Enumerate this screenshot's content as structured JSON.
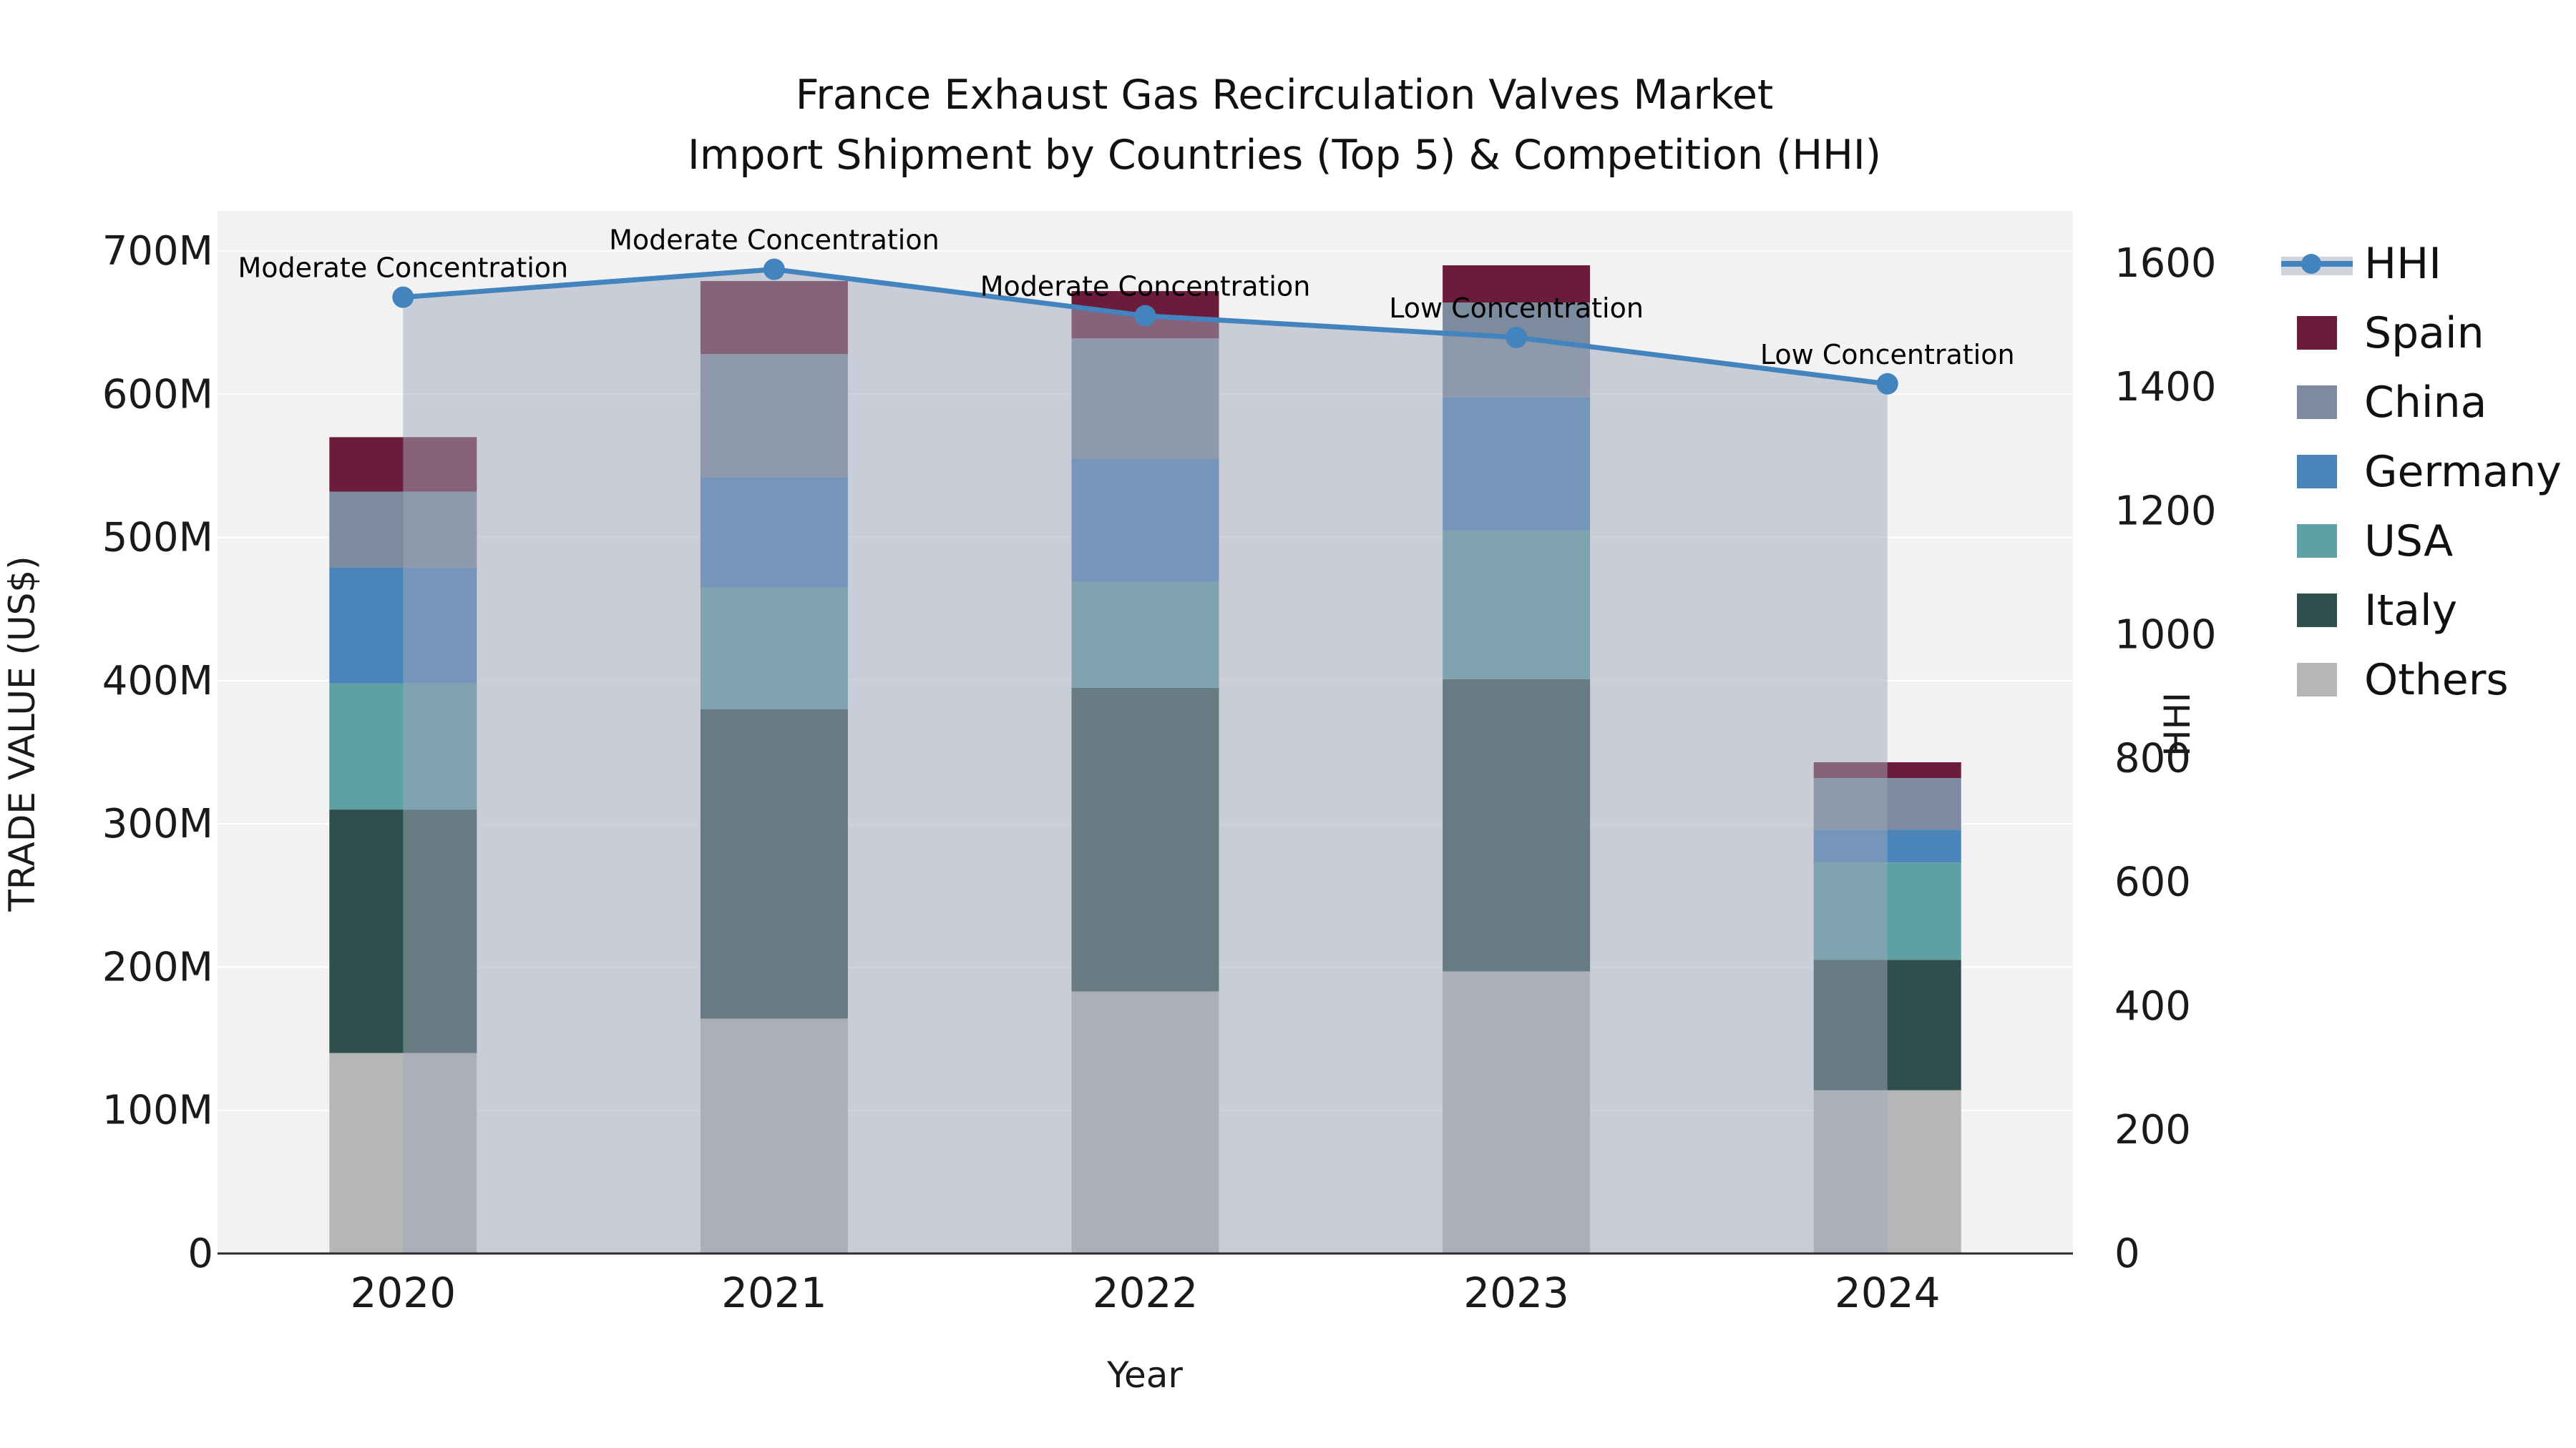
{
  "title": {
    "line1": "France Exhaust Gas Recirculation Valves Market",
    "line2": "Import Shipment by Countries (Top 5) & Competition (HHI)"
  },
  "chart_data": {
    "type": "bar",
    "subtype": "stacked-bars-with-line-overlay",
    "x": [
      "2020",
      "2021",
      "2022",
      "2023",
      "2024"
    ],
    "xlabel": "Year",
    "y_left": {
      "label": "TRADE VALUE (US$)",
      "unit": "millions USD",
      "range": [
        0,
        700
      ],
      "tick_labels": [
        "0",
        "100M",
        "200M",
        "300M",
        "400M",
        "500M",
        "600M",
        "700M"
      ],
      "tick_values": [
        0,
        100,
        200,
        300,
        400,
        500,
        600,
        700
      ]
    },
    "y_right": {
      "label": "HHI",
      "range": [
        0,
        1600
      ],
      "tick_labels": [
        "0",
        "200",
        "400",
        "600",
        "800",
        "1000",
        "1200",
        "1400",
        "1600"
      ],
      "tick_values": [
        0,
        200,
        400,
        600,
        800,
        1000,
        1200,
        1400,
        1600
      ]
    },
    "grid": "horizontal-white-on-lightgray",
    "plot_background": "#F2F2F2",
    "stack_order": "bottom-to-top",
    "series": [
      {
        "name": "Others",
        "color": "#B4B6B7",
        "values": [
          140,
          164,
          183,
          197,
          114
        ]
      },
      {
        "name": "Italy",
        "color": "#2E4F4B",
        "values": [
          170,
          216,
          212,
          204,
          91
        ]
      },
      {
        "name": "USA",
        "color": "#5FA0A2",
        "values": [
          88,
          85,
          74,
          104,
          68
        ]
      },
      {
        "name": "Germany",
        "color": "#4A84B8",
        "values": [
          81,
          77,
          86,
          93,
          23
        ]
      },
      {
        "name": "China",
        "color": "#7C8B9D",
        "values": [
          53,
          86,
          84,
          66,
          36
        ]
      },
      {
        "name": "Spain",
        "color": "#6C1C3B",
        "values": [
          38,
          51,
          33,
          26,
          11
        ]
      }
    ],
    "bar_totals": [
      570,
      679,
      672,
      690,
      343
    ],
    "line_series": {
      "name": "HHI",
      "axis": "right",
      "color": "#4383BE",
      "area_fill": "rgba(159,168,188,0.5)",
      "values": [
        1545,
        1590,
        1515,
        1480,
        1405
      ]
    },
    "annotations": [
      {
        "x": "2020",
        "text": "Moderate Concentration"
      },
      {
        "x": "2021",
        "text": "Moderate Concentration"
      },
      {
        "x": "2022",
        "text": "Moderate Concentration"
      },
      {
        "x": "2023",
        "text": "Low Concentration"
      },
      {
        "x": "2024",
        "text": "Low Concentration"
      }
    ],
    "legend": {
      "position": "right",
      "entries": [
        {
          "label": "HHI",
          "type": "line"
        },
        {
          "label": "Spain",
          "type": "swatch"
        },
        {
          "label": "China",
          "type": "swatch"
        },
        {
          "label": "Germany",
          "type": "swatch"
        },
        {
          "label": "USA",
          "type": "swatch"
        },
        {
          "label": "Italy",
          "type": "swatch"
        },
        {
          "label": "Others",
          "type": "swatch"
        }
      ]
    }
  }
}
